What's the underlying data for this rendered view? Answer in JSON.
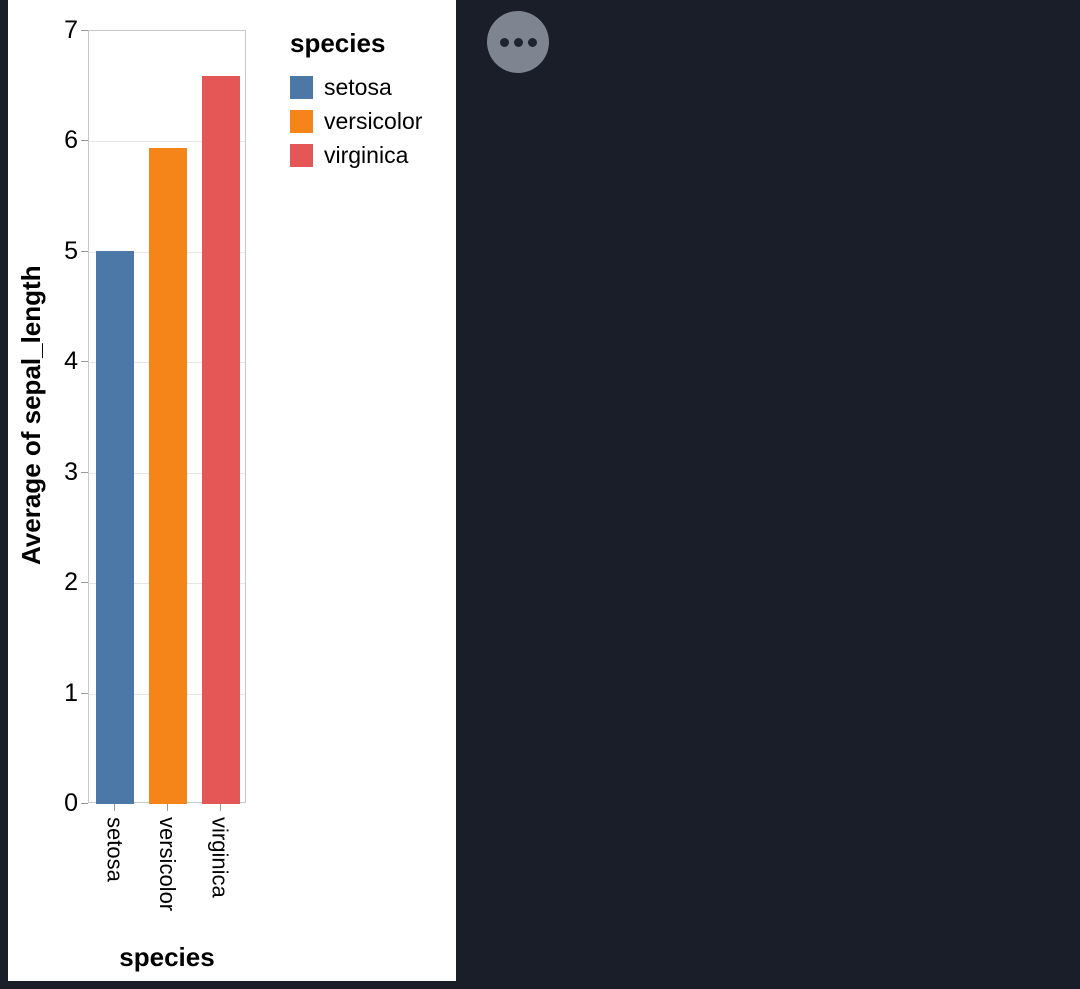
{
  "app": {
    "background_color": "#1a1e29",
    "options_button_icon": "ellipsis-icon"
  },
  "chart_data": {
    "type": "bar",
    "categories": [
      "setosa",
      "versicolor",
      "virginica"
    ],
    "values": [
      5.01,
      5.94,
      6.59
    ],
    "colors": [
      "#4c78a8",
      "#f58518",
      "#e45756"
    ],
    "title": "",
    "xlabel": "species",
    "ylabel": "Average of sepal_length",
    "ylim": [
      0,
      7
    ],
    "yticks": [
      0,
      1,
      2,
      3,
      4,
      5,
      6,
      7
    ],
    "grid": true,
    "legend_position": "top-right",
    "legend": {
      "title": "species",
      "entries": [
        {
          "label": "setosa",
          "color": "#4c78a8"
        },
        {
          "label": "versicolor",
          "color": "#f58518"
        },
        {
          "label": "virginica",
          "color": "#e45756"
        }
      ]
    }
  }
}
